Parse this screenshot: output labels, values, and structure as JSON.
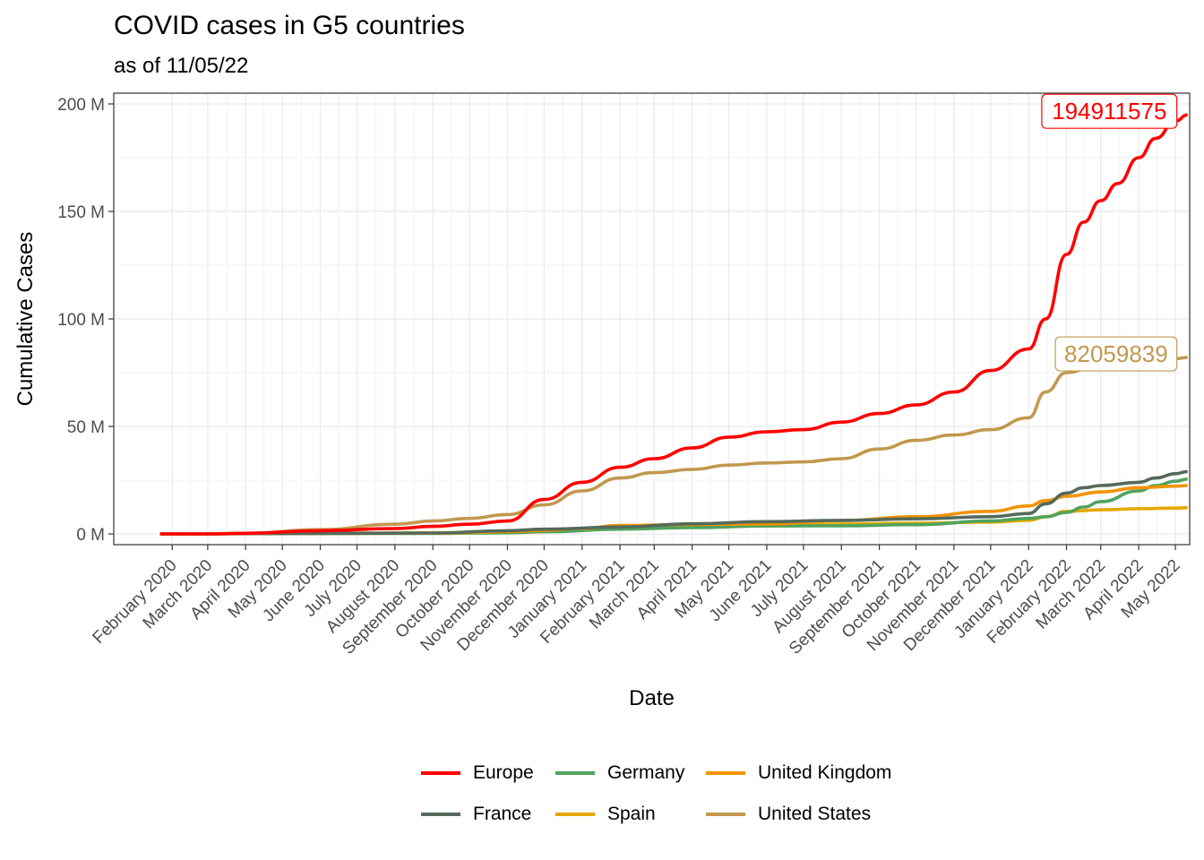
{
  "chart_data": {
    "type": "line",
    "title": "COVID cases in G5 countries",
    "subtitle": "as of 11/05/22",
    "xlabel": "Date",
    "ylabel": "Cumulative Cases",
    "x_range": [
      "2020-01-22",
      "2022-05-11"
    ],
    "ylim": [
      -5000000,
      205000000
    ],
    "y_ticks": [
      0,
      50000000,
      100000000,
      150000000,
      200000000
    ],
    "y_tick_labels": [
      "0 M",
      "50 M",
      "100 M",
      "150 M",
      "200 M"
    ],
    "x_ticks": [
      "2020-02-01",
      "2020-03-01",
      "2020-04-01",
      "2020-05-01",
      "2020-06-01",
      "2020-07-01",
      "2020-08-01",
      "2020-09-01",
      "2020-10-01",
      "2020-11-01",
      "2020-12-01",
      "2021-01-01",
      "2021-02-01",
      "2021-03-01",
      "2021-04-01",
      "2021-05-01",
      "2021-06-01",
      "2021-07-01",
      "2021-08-01",
      "2021-09-01",
      "2021-10-01",
      "2021-11-01",
      "2021-12-01",
      "2022-01-01",
      "2022-02-01",
      "2022-03-01",
      "2022-04-01",
      "2022-05-01"
    ],
    "x_tick_labels": [
      "February 2020",
      "March 2020",
      "April 2020",
      "May 2020",
      "June 2020",
      "July 2020",
      "August 2020",
      "September 2020",
      "October 2020",
      "November 2020",
      "December 2020",
      "January 2021",
      "February 2021",
      "March 2021",
      "April 2021",
      "May 2021",
      "June 2021",
      "July 2021",
      "August 2021",
      "September 2021",
      "October 2021",
      "November 2021",
      "December 2021",
      "January 2022",
      "February 2022",
      "March 2022",
      "April 2022",
      "May 2022"
    ],
    "grid": true,
    "legend_position": "bottom",
    "series": [
      {
        "name": "Europe",
        "color": "#ff0000",
        "x": [
          "2020-01-22",
          "2020-03-01",
          "2020-04-01",
          "2020-06-01",
          "2020-08-01",
          "2020-09-01",
          "2020-10-01",
          "2020-11-01",
          "2020-12-01",
          "2021-01-01",
          "2021-02-01",
          "2021-03-01",
          "2021-04-01",
          "2021-05-01",
          "2021-06-01",
          "2021-07-01",
          "2021-08-01",
          "2021-09-01",
          "2021-10-01",
          "2021-11-01",
          "2021-12-01",
          "2022-01-01",
          "2022-01-15",
          "2022-02-01",
          "2022-02-15",
          "2022-03-01",
          "2022-03-15",
          "2022-04-01",
          "2022-04-15",
          "2022-05-01",
          "2022-05-11"
        ],
        "y": [
          0,
          0,
          300000,
          1500000,
          2500000,
          3500000,
          4500000,
          6000000,
          16000000,
          24000000,
          31000000,
          35000000,
          40000000,
          45000000,
          47500000,
          48500000,
          52000000,
          56000000,
          60000000,
          66000000,
          76000000,
          86000000,
          100000000,
          130000000,
          145000000,
          155000000,
          163000000,
          175000000,
          184000000,
          192000000,
          194911575
        ],
        "end_label": "194911575"
      },
      {
        "name": "France",
        "color": "#546a5c",
        "x": [
          "2020-01-22",
          "2020-05-01",
          "2020-09-01",
          "2020-11-01",
          "2020-12-01",
          "2021-02-01",
          "2021-04-01",
          "2021-06-01",
          "2021-08-01",
          "2021-10-01",
          "2021-12-01",
          "2022-01-01",
          "2022-01-15",
          "2022-02-01",
          "2022-02-15",
          "2022-03-01",
          "2022-04-01",
          "2022-04-15",
          "2022-05-01",
          "2022-05-11"
        ],
        "y": [
          0,
          150000,
          400000,
          1500000,
          2200000,
          3200000,
          4700000,
          5700000,
          6300000,
          7000000,
          8000000,
          9500000,
          14000000,
          19000000,
          21500000,
          22500000,
          24000000,
          26000000,
          28000000,
          29000000
        ]
      },
      {
        "name": "Germany",
        "color": "#4fa35d",
        "x": [
          "2020-01-22",
          "2020-05-01",
          "2020-09-01",
          "2020-11-01",
          "2020-12-01",
          "2021-02-01",
          "2021-04-01",
          "2021-06-01",
          "2021-08-01",
          "2021-10-01",
          "2021-12-01",
          "2022-01-01",
          "2022-01-15",
          "2022-02-01",
          "2022-02-15",
          "2022-03-01",
          "2022-04-01",
          "2022-04-15",
          "2022-05-01",
          "2022-05-11"
        ],
        "y": [
          0,
          150000,
          250000,
          500000,
          1000000,
          2200000,
          2900000,
          3700000,
          3800000,
          4300000,
          6000000,
          7200000,
          8000000,
          10000000,
          12500000,
          15000000,
          20000000,
          22500000,
          24500000,
          25500000
        ]
      },
      {
        "name": "Spain",
        "color": "#e6a800",
        "x": [
          "2020-01-22",
          "2020-05-01",
          "2020-09-01",
          "2020-11-01",
          "2020-12-01",
          "2021-02-01",
          "2021-04-01",
          "2021-06-01",
          "2021-08-01",
          "2021-10-01",
          "2021-12-01",
          "2022-01-01",
          "2022-01-15",
          "2022-02-01",
          "2022-03-01",
          "2022-04-01",
          "2022-05-01",
          "2022-05-11"
        ],
        "y": [
          0,
          200000,
          500000,
          1200000,
          1700000,
          2900000,
          3300000,
          3700000,
          4600000,
          5000000,
          5500000,
          6300000,
          8000000,
          10500000,
          11200000,
          11700000,
          12000000,
          12200000
        ]
      },
      {
        "name": "United Kingdom",
        "color": "#f29300",
        "x": [
          "2020-01-22",
          "2020-05-01",
          "2020-09-01",
          "2020-11-01",
          "2020-12-01",
          "2021-01-01",
          "2021-02-01",
          "2021-04-01",
          "2021-06-01",
          "2021-08-01",
          "2021-10-01",
          "2021-12-01",
          "2022-01-01",
          "2022-01-15",
          "2022-02-01",
          "2022-03-01",
          "2022-04-01",
          "2022-05-01",
          "2022-05-11"
        ],
        "y": [
          0,
          200000,
          350000,
          1000000,
          1700000,
          2500000,
          3900000,
          4400000,
          4600000,
          6200000,
          8000000,
          10500000,
          13000000,
          15500000,
          17500000,
          19500000,
          21500000,
          22200000,
          22500000
        ]
      },
      {
        "name": "United States",
        "color": "#c2984f",
        "x": [
          "2020-01-22",
          "2020-03-01",
          "2020-04-01",
          "2020-06-01",
          "2020-08-01",
          "2020-09-01",
          "2020-10-01",
          "2020-11-01",
          "2020-12-01",
          "2021-01-01",
          "2021-02-01",
          "2021-03-01",
          "2021-04-01",
          "2021-05-01",
          "2021-06-01",
          "2021-07-01",
          "2021-08-01",
          "2021-09-01",
          "2021-10-01",
          "2021-11-01",
          "2021-12-01",
          "2022-01-01",
          "2022-01-15",
          "2022-02-01",
          "2022-03-01",
          "2022-04-01",
          "2022-05-01",
          "2022-05-11"
        ],
        "y": [
          0,
          0,
          200000,
          2000000,
          4500000,
          6000000,
          7200000,
          9000000,
          13500000,
          20000000,
          26000000,
          28500000,
          30000000,
          32000000,
          33000000,
          33500000,
          35000000,
          39500000,
          43500000,
          46000000,
          48500000,
          54000000,
          66000000,
          75000000,
          79500000,
          80500000,
          81500000,
          82059839
        ],
        "end_label": "82059839"
      }
    ]
  }
}
